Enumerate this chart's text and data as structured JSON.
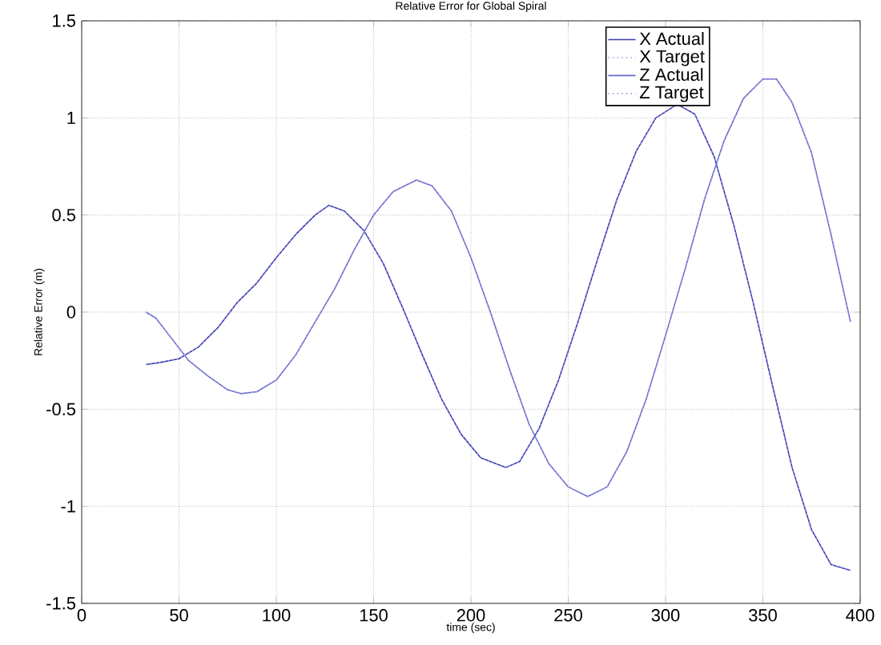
{
  "chart_data": {
    "type": "line",
    "title": "Relative Error for Global Spiral",
    "xlabel": "time (sec)",
    "ylabel": "Relative Error (m)",
    "xlim": [
      0,
      400
    ],
    "ylim": [
      -1.5,
      1.5
    ],
    "xticks": [
      0,
      50,
      100,
      150,
      200,
      250,
      300,
      350,
      400
    ],
    "yticks": [
      -1.5,
      -1,
      -0.5,
      0,
      0.5,
      1,
      1.5
    ],
    "grid": true,
    "legend": "top right",
    "series": [
      {
        "name": "X Actual",
        "color": "#3b3bb0",
        "line_style": "solid",
        "x": [
          33,
          40,
          50,
          60,
          70,
          80,
          90,
          100,
          110,
          120,
          127,
          135,
          145,
          155,
          165,
          175,
          185,
          195,
          205,
          218,
          225,
          235,
          245,
          255,
          265,
          275,
          285,
          295,
          306,
          315,
          325,
          335,
          345,
          355,
          365,
          375,
          385,
          395
        ],
        "values": [
          -0.27,
          -0.26,
          -0.24,
          -0.18,
          -0.08,
          0.05,
          0.15,
          0.28,
          0.4,
          0.5,
          0.55,
          0.52,
          0.42,
          0.25,
          0.02,
          -0.22,
          -0.45,
          -0.63,
          -0.75,
          -0.8,
          -0.77,
          -0.6,
          -0.35,
          -0.05,
          0.27,
          0.58,
          0.83,
          1.0,
          1.07,
          1.02,
          0.8,
          0.45,
          0.05,
          -0.38,
          -0.8,
          -1.12,
          -1.3,
          -1.33
        ]
      },
      {
        "name": "X Target",
        "color": "#a0a0e0",
        "line_style": "dotted",
        "x": [
          33,
          40,
          50,
          60,
          70,
          80,
          90,
          100,
          110,
          120,
          127,
          135,
          145,
          155,
          165,
          175,
          185,
          195,
          205,
          218,
          225,
          235,
          245,
          255,
          265,
          275,
          285,
          295,
          306,
          315,
          325,
          335,
          345,
          355,
          365,
          375,
          385,
          395
        ],
        "values": [
          -0.27,
          -0.26,
          -0.24,
          -0.18,
          -0.08,
          0.05,
          0.15,
          0.28,
          0.4,
          0.5,
          0.55,
          0.52,
          0.42,
          0.25,
          0.02,
          -0.22,
          -0.45,
          -0.63,
          -0.75,
          -0.8,
          -0.77,
          -0.6,
          -0.35,
          -0.05,
          0.27,
          0.58,
          0.83,
          1.0,
          1.07,
          1.02,
          0.8,
          0.45,
          0.05,
          -0.38,
          -0.8,
          -1.12,
          -1.3,
          -1.33
        ]
      },
      {
        "name": "Z Actual",
        "color": "#6a6acc",
        "line_style": "solid",
        "x": [
          33,
          38,
          45,
          55,
          65,
          75,
          82,
          90,
          100,
          110,
          120,
          130,
          140,
          150,
          160,
          172,
          180,
          190,
          200,
          210,
          220,
          230,
          240,
          250,
          260,
          270,
          280,
          290,
          300,
          310,
          320,
          330,
          340,
          350,
          357,
          365,
          375,
          385,
          395
        ],
        "values": [
          0,
          -0.03,
          -0.12,
          -0.25,
          -0.33,
          -0.4,
          -0.42,
          -0.41,
          -0.35,
          -0.22,
          -0.05,
          0.12,
          0.32,
          0.5,
          0.62,
          0.68,
          0.65,
          0.52,
          0.28,
          0.0,
          -0.3,
          -0.58,
          -0.78,
          -0.9,
          -0.95,
          -0.9,
          -0.72,
          -0.45,
          -0.12,
          0.22,
          0.58,
          0.88,
          1.1,
          1.2,
          1.2,
          1.08,
          0.82,
          0.4,
          -0.05
        ]
      },
      {
        "name": "Z Target",
        "color": "#a0a0e0",
        "line_style": "dotted",
        "x": [
          33,
          38,
          45,
          55,
          65,
          75,
          82,
          90,
          100,
          110,
          120,
          130,
          140,
          150,
          160,
          172,
          180,
          190,
          200,
          210,
          220,
          230,
          240,
          250,
          260,
          270,
          280,
          290,
          300,
          310,
          320,
          330,
          340,
          350,
          357,
          365,
          375,
          385,
          395
        ],
        "values": [
          0,
          -0.03,
          -0.12,
          -0.25,
          -0.33,
          -0.4,
          -0.42,
          -0.41,
          -0.35,
          -0.22,
          -0.05,
          0.12,
          0.32,
          0.5,
          0.62,
          0.68,
          0.65,
          0.52,
          0.28,
          0.0,
          -0.3,
          -0.58,
          -0.78,
          -0.9,
          -0.95,
          -0.9,
          -0.72,
          -0.45,
          -0.12,
          0.22,
          0.58,
          0.88,
          1.1,
          1.2,
          1.2,
          1.08,
          0.82,
          0.4,
          -0.05
        ]
      }
    ]
  }
}
